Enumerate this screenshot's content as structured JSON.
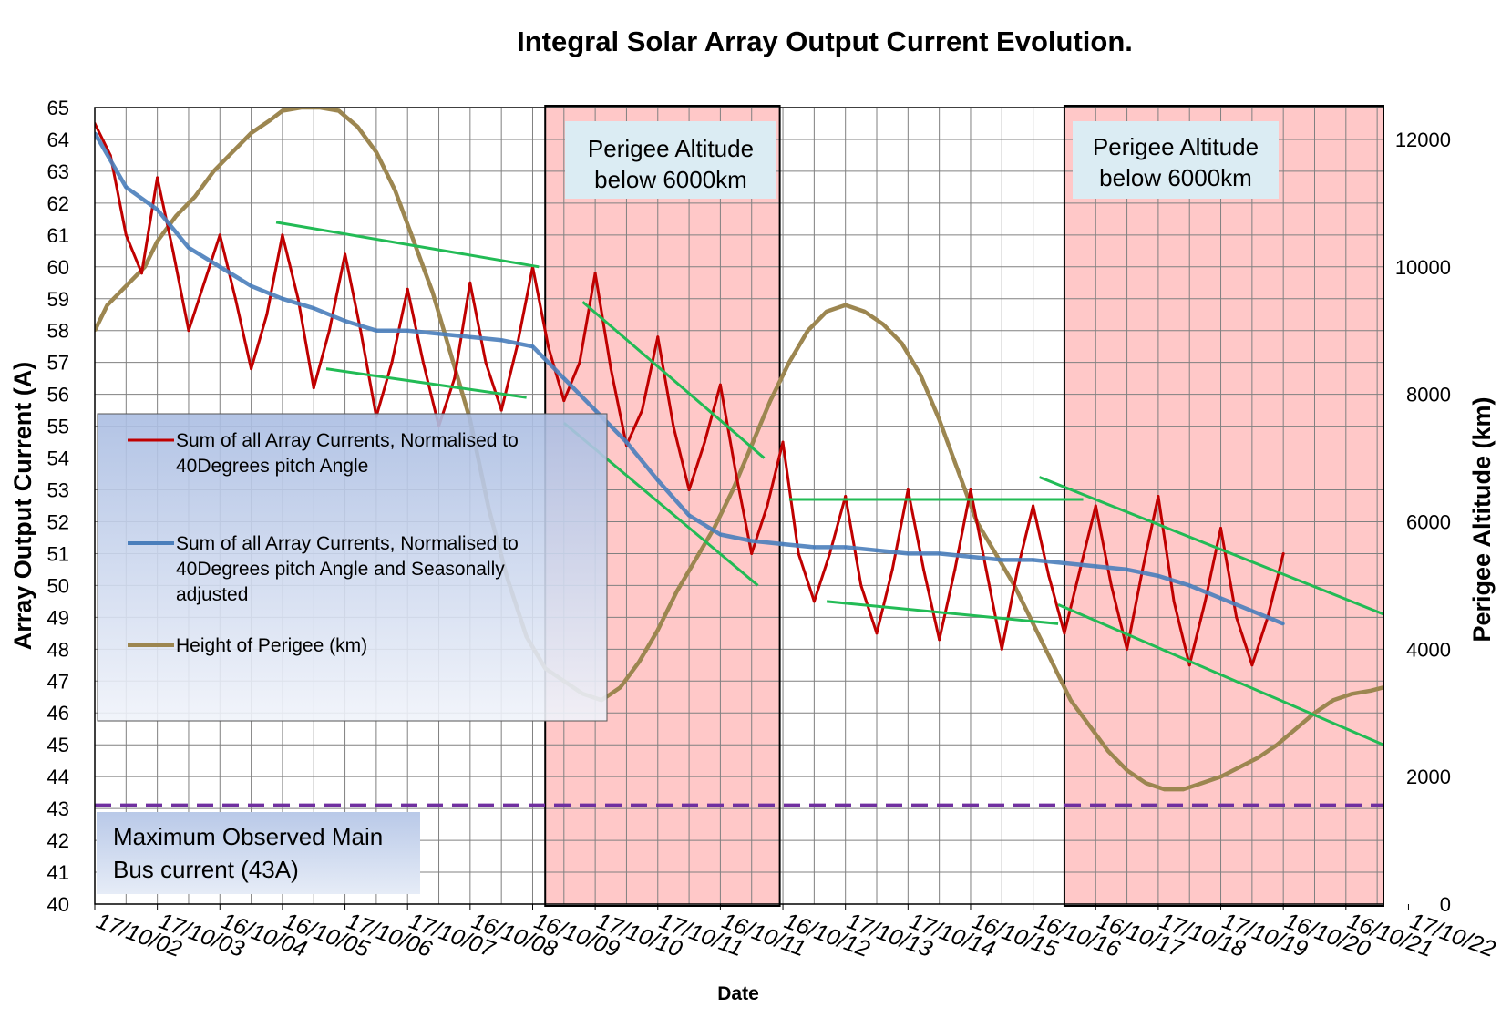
{
  "chart_data": {
    "type": "line",
    "title": "Integral Solar Array Output Current Evolution.",
    "xlabel": "Date",
    "ylabel": "Array Output Current (A)",
    "y2label": "Perigee Altitude (km)",
    "ylim": [
      40,
      65
    ],
    "y2lim": [
      0,
      12500
    ],
    "yticks": [
      40,
      41,
      42,
      43,
      44,
      45,
      46,
      47,
      48,
      49,
      50,
      51,
      52,
      53,
      54,
      55,
      56,
      57,
      58,
      59,
      60,
      61,
      62,
      63,
      64,
      65
    ],
    "y2ticks": [
      0,
      2000,
      4000,
      6000,
      8000,
      10000,
      12000
    ],
    "xlim": [
      0,
      20.6
    ],
    "categories": [
      "17/10/02",
      "17/10/03",
      "16/10/04",
      "16/10/05",
      "17/10/06",
      "17/10/07",
      "16/10/08",
      "16/10/09",
      "17/10/10",
      "17/10/11",
      "16/10/11",
      "16/10/12",
      "17/10/13",
      "17/10/14",
      "16/10/15",
      "16/10/16",
      "16/10/17",
      "17/10/18",
      "17/10/19",
      "16/10/20",
      "16/10/21",
      "17/10/22"
    ],
    "grid": true,
    "series": [
      {
        "name": "Sum of all Array Currents, Normalised to 40Degrees pitch Angle",
        "color": "#c00000",
        "axis": "left",
        "x": [
          0,
          0.25,
          0.5,
          0.75,
          1.0,
          1.25,
          1.5,
          1.75,
          2.0,
          2.25,
          2.5,
          2.75,
          3.0,
          3.25,
          3.5,
          3.75,
          4.0,
          4.25,
          4.5,
          4.75,
          5.0,
          5.25,
          5.5,
          5.75,
          6.0,
          6.25,
          6.5,
          6.75,
          7.0,
          7.25,
          7.5,
          7.75,
          8.0,
          8.25,
          8.5,
          8.75,
          9.0,
          9.25,
          9.5,
          9.75,
          10.0,
          10.25,
          10.5,
          10.75,
          11.0,
          11.25,
          11.5,
          11.75,
          12.0,
          12.25,
          12.5,
          12.75,
          13.0,
          13.25,
          13.5,
          13.75,
          14.0,
          14.25,
          14.5,
          14.75,
          15.0,
          15.25,
          15.5,
          15.75,
          16.0,
          16.25,
          16.5,
          16.75,
          17.0,
          17.25,
          17.5,
          17.75,
          18.0,
          18.25,
          18.5,
          18.75,
          19.0
        ],
        "values": [
          64.5,
          63.5,
          61.0,
          59.8,
          62.8,
          60.5,
          58.0,
          59.5,
          61.0,
          59.0,
          56.8,
          58.5,
          61.0,
          59.0,
          56.2,
          58.0,
          60.4,
          58.0,
          55.3,
          57.0,
          59.3,
          57.0,
          55.0,
          56.5,
          59.5,
          57.0,
          55.5,
          57.5,
          60.0,
          57.5,
          55.8,
          57.0,
          59.8,
          56.8,
          54.4,
          55.5,
          57.8,
          55.0,
          53.0,
          54.5,
          56.3,
          53.5,
          51.0,
          52.5,
          54.5,
          51.0,
          49.5,
          51.0,
          52.8,
          50.0,
          48.5,
          50.5,
          53.0,
          50.5,
          48.3,
          50.5,
          53.0,
          50.5,
          48.0,
          50.5,
          52.5,
          50.3,
          48.5,
          50.5,
          52.5,
          50.0,
          48.0,
          50.5,
          52.8,
          49.5,
          47.5,
          49.5,
          51.8,
          49.0,
          47.5,
          49.0,
          51.0
        ]
      },
      {
        "name": "Sum of all Array Currents, Normalised to 40Degrees pitch Angle and Seasonally adjusted",
        "color": "#4a7ebb",
        "axis": "left",
        "x": [
          0,
          0.5,
          1.0,
          1.5,
          2.0,
          2.5,
          3.0,
          3.5,
          4.0,
          4.5,
          5.0,
          5.5,
          6.0,
          6.5,
          7.0,
          7.5,
          8.0,
          8.5,
          9.0,
          9.5,
          10.0,
          10.5,
          11.0,
          11.5,
          12.0,
          12.5,
          13.0,
          13.5,
          14.0,
          14.5,
          15.0,
          15.5,
          16.0,
          16.5,
          17.0,
          17.5,
          18.0,
          18.5,
          19.0
        ],
        "values": [
          64.2,
          62.5,
          61.8,
          60.6,
          60.0,
          59.4,
          59.0,
          58.7,
          58.3,
          58.0,
          58.0,
          57.9,
          57.8,
          57.7,
          57.5,
          56.5,
          55.5,
          54.5,
          53.3,
          52.2,
          51.6,
          51.4,
          51.3,
          51.2,
          51.2,
          51.1,
          51.0,
          51.0,
          50.9,
          50.8,
          50.8,
          50.7,
          50.6,
          50.5,
          50.3,
          50.0,
          49.6,
          49.2,
          48.8
        ]
      },
      {
        "name": "Height of Perigee (km)",
        "color": "#9c8650",
        "axis": "right",
        "x": [
          0,
          0.2,
          0.5,
          0.8,
          1.0,
          1.3,
          1.6,
          1.9,
          2.2,
          2.5,
          2.8,
          3.0,
          3.3,
          3.6,
          3.9,
          4.2,
          4.5,
          4.8,
          5.1,
          5.4,
          5.7,
          6.0,
          6.3,
          6.6,
          6.9,
          7.2,
          7.5,
          7.8,
          8.1,
          8.4,
          8.7,
          9.0,
          9.3,
          9.6,
          9.9,
          10.2,
          10.5,
          10.8,
          11.1,
          11.4,
          11.7,
          12.0,
          12.3,
          12.6,
          12.9,
          13.2,
          13.5,
          13.8,
          14.1,
          14.4,
          14.7,
          15.0,
          15.3,
          15.6,
          15.9,
          16.2,
          16.5,
          16.8,
          17.1,
          17.4,
          17.7,
          18.0,
          18.3,
          18.6,
          18.9,
          19.2,
          19.5,
          19.8,
          20.1,
          20.4,
          20.6
        ],
        "values": [
          9000,
          9400,
          9700,
          10000,
          10400,
          10800,
          11100,
          11500,
          11800,
          12100,
          12300,
          12450,
          12500,
          12500,
          12450,
          12200,
          11800,
          11200,
          10400,
          9600,
          8600,
          7600,
          6200,
          5100,
          4200,
          3700,
          3500,
          3300,
          3200,
          3400,
          3800,
          4300,
          4900,
          5400,
          5900,
          6500,
          7200,
          7900,
          8500,
          9000,
          9300,
          9400,
          9300,
          9100,
          8800,
          8300,
          7600,
          6800,
          6000,
          5500,
          5000,
          4400,
          3800,
          3200,
          2800,
          2400,
          2100,
          1900,
          1800,
          1800,
          1900,
          2000,
          2150,
          2300,
          2500,
          2750,
          3000,
          3200,
          3300,
          3350,
          3400
        ]
      }
    ],
    "trend_lines": [
      {
        "points": [
          [
            2.9,
            61.4
          ],
          [
            7.1,
            60.0
          ]
        ]
      },
      {
        "points": [
          [
            3.7,
            56.8
          ],
          [
            6.9,
            55.9
          ]
        ]
      },
      {
        "points": [
          [
            7.8,
            58.9
          ],
          [
            10.7,
            54.0
          ]
        ]
      },
      {
        "points": [
          [
            7.5,
            55.1
          ],
          [
            10.6,
            50.0
          ]
        ]
      },
      {
        "points": [
          [
            11.1,
            52.7
          ],
          [
            15.8,
            52.7
          ]
        ]
      },
      {
        "points": [
          [
            11.7,
            49.5
          ],
          [
            15.4,
            48.8
          ]
        ]
      },
      {
        "points": [
          [
            15.1,
            53.4
          ],
          [
            20.6,
            49.1
          ]
        ]
      },
      {
        "points": [
          [
            15.4,
            49.4
          ],
          [
            20.6,
            45.0
          ]
        ]
      }
    ],
    "reference_line": {
      "value": 43.1,
      "color": "#7030a0",
      "label": "Maximum Observed Main Bus current (43A)"
    },
    "shaded_regions": [
      {
        "x": [
          7.2,
          10.95
        ],
        "label": "Perigee Altitude below 6000km"
      },
      {
        "x": [
          15.5,
          20.6
        ],
        "label": "Perigee Altitude below 6000km"
      }
    ],
    "legend": {
      "position": "left-center",
      "entries": [
        "Sum of all Array Currents, Normalised to 40Degrees pitch Angle",
        "Sum of all Array Currents, Normalised to 40Degrees pitch Angle and Seasonally adjusted",
        "Height of Perigee (km)"
      ]
    }
  },
  "labels": {
    "region1_line1": "Perigee Altitude",
    "region1_line2": "below 6000km",
    "region2_line1": "Perigee Altitude",
    "region2_line2": "below 6000km",
    "ref_line1": "Maximum Observed Main",
    "ref_line2": "Bus current (43A)",
    "legend_red_1": "Sum of all Array Currents, Normalised to",
    "legend_red_2": "40Degrees pitch Angle",
    "legend_blue_1": "Sum of all Array Currents, Normalised to",
    "legend_blue_2": "40Degrees pitch Angle and Seasonally",
    "legend_blue_3": "adjusted",
    "legend_tan_1": "Height of Perigee (km)"
  },
  "colors": {
    "red": "#c00000",
    "blue": "#4a7ebb",
    "tan": "#9c8650",
    "green": "#22bb55",
    "purple": "#7030a0",
    "shade": "#ffc8c8"
  }
}
